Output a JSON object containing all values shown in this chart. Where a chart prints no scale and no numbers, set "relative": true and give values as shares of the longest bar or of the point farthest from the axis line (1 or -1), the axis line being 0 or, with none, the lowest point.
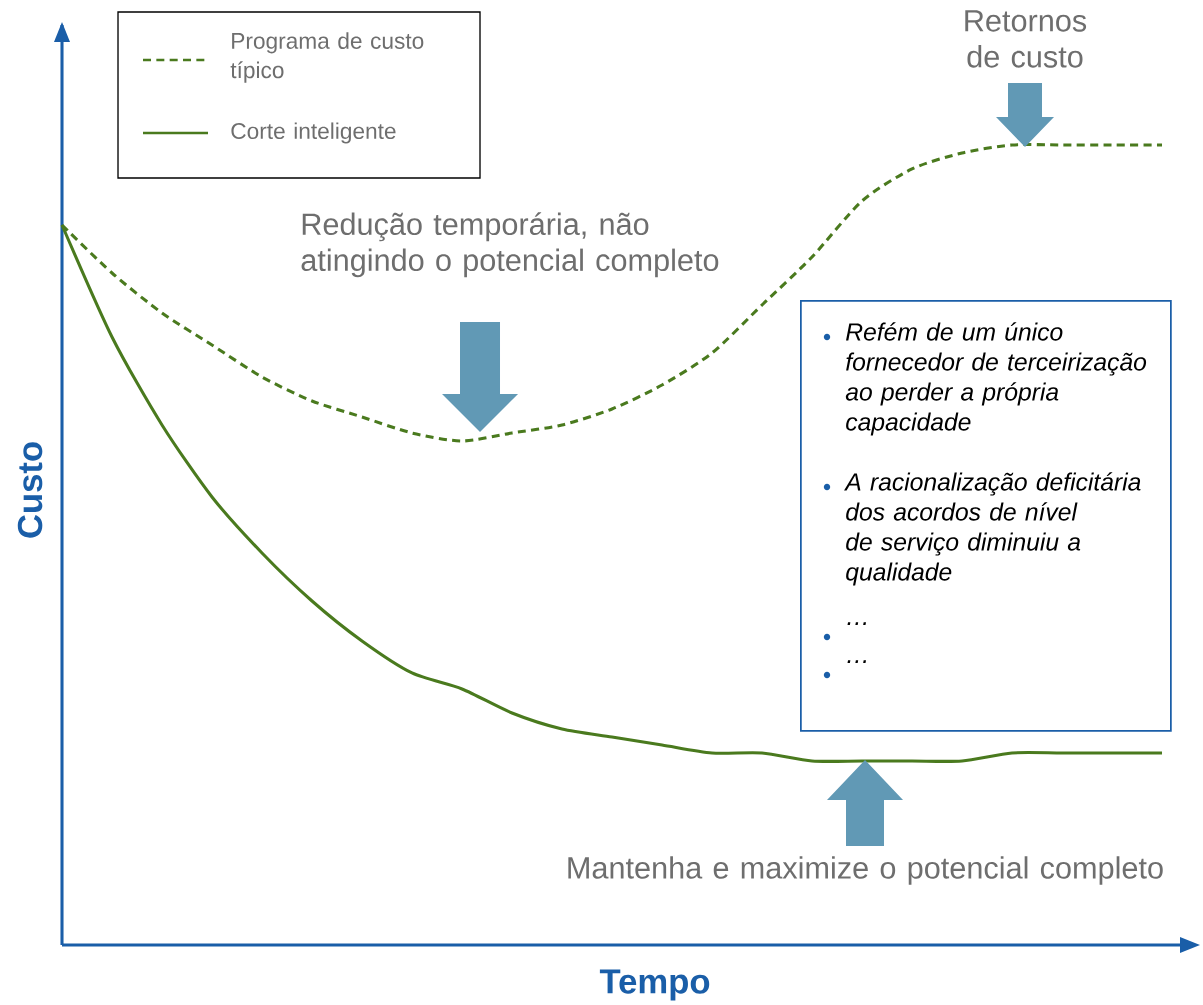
{
  "chart_data": {
    "type": "line",
    "relative": true,
    "xlabel": "Tempo",
    "ylabel": "Custo",
    "legend": "top left",
    "categories": [
      null,
      null,
      null,
      null,
      null,
      null,
      null,
      null,
      null,
      null,
      null,
      null,
      null,
      null,
      null,
      null,
      null,
      null,
      null,
      null,
      null,
      null,
      null
    ],
    "series": [
      {
        "name": "Programa de custo típico",
        "color": "#4a7a1e",
        "line_style": "dashed",
        "values": [
          0.9,
          0.84,
          0.79,
          0.75,
          0.71,
          0.68,
          0.66,
          0.64,
          0.63,
          0.64,
          0.65,
          0.67,
          0.7,
          0.74,
          0.8,
          0.86,
          0.93,
          0.97,
          0.99,
          1,
          1,
          1,
          1
        ]
      },
      {
        "name": "Corte inteligente",
        "color": "#4a7a1e",
        "line_style": "solid",
        "values": [
          0.9,
          0.76,
          0.65,
          0.56,
          0.49,
          0.43,
          0.38,
          0.34,
          0.32,
          0.29,
          0.27,
          0.26,
          0.25,
          0.24,
          0.24,
          0.23,
          0.23,
          0.23,
          0.23,
          0.24,
          0.24,
          0.24,
          0.24
        ]
      }
    ],
    "annotations": [
      "Redução temporária, não atingindo o potencial completo",
      "Retornos de custo",
      "Mantenha e maximize o potencial completo",
      "Refém de um único fornecedor de terceirização ao perder a própria capacidade",
      "A racionalização deficitária dos acordos de nível de serviço diminuiu a qualidade",
      "…",
      "…"
    ]
  }
}
